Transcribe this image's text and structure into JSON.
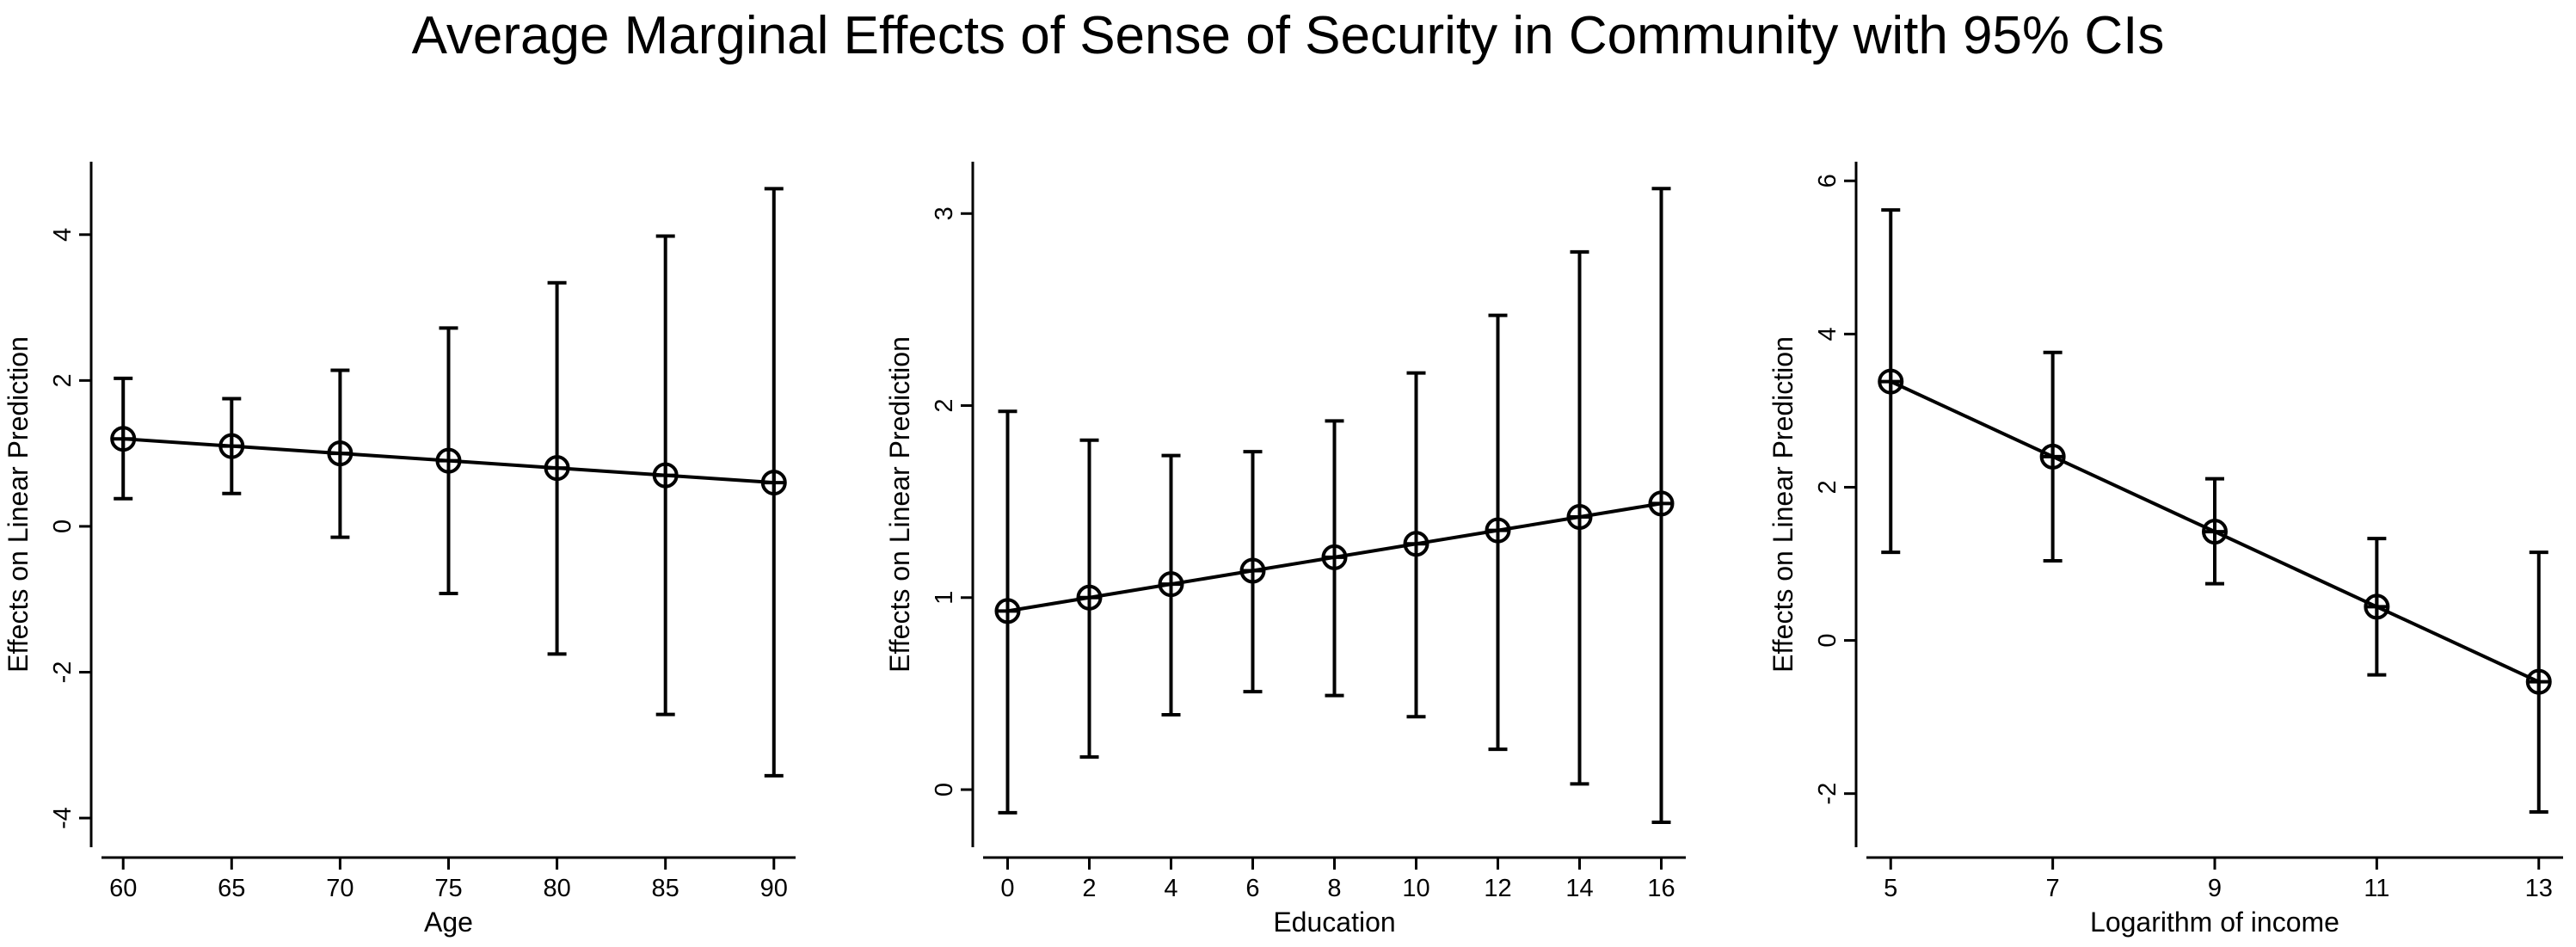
{
  "figure": {
    "title": "Average Marginal Effects of Sense of Security in Community with 95% CIs"
  },
  "chart_data": [
    {
      "type": "line",
      "error_bars": true,
      "marker": "circle",
      "xlabel": "Age",
      "ylabel": "Effects on Linear Prediction",
      "xlim": [
        59,
        91
      ],
      "ylim": [
        -4.4,
        5.0
      ],
      "xticks": [
        60,
        65,
        70,
        75,
        80,
        85,
        90
      ],
      "yticks": [
        -4,
        -2,
        0,
        2,
        4
      ],
      "grid": false,
      "series": [
        {
          "name": "Average marginal effect",
          "x": [
            60,
            65,
            70,
            75,
            80,
            85,
            90
          ],
          "y": [
            1.2,
            1.1,
            1.0,
            0.9,
            0.8,
            0.7,
            0.6
          ],
          "ci_low": [
            0.38,
            0.45,
            -0.15,
            -0.92,
            -1.75,
            -2.58,
            -3.42
          ],
          "ci_high": [
            2.03,
            1.75,
            2.14,
            2.72,
            3.34,
            3.98,
            4.63
          ]
        }
      ]
    },
    {
      "type": "line",
      "error_bars": true,
      "marker": "circle",
      "xlabel": "Education",
      "ylabel": "Effects on Linear Prediction",
      "xlim": [
        -0.6,
        16.6
      ],
      "ylim": [
        -0.3,
        3.27
      ],
      "xticks": [
        0,
        2,
        4,
        6,
        8,
        10,
        12,
        14,
        16
      ],
      "yticks": [
        0,
        1,
        2,
        3
      ],
      "grid": false,
      "series": [
        {
          "name": "Average marginal effect",
          "x": [
            0,
            2,
            4,
            6,
            8,
            10,
            12,
            14,
            16
          ],
          "y": [
            0.93,
            1.0,
            1.07,
            1.14,
            1.21,
            1.28,
            1.35,
            1.42,
            1.49
          ],
          "ci_low": [
            -0.12,
            0.17,
            0.39,
            0.51,
            0.49,
            0.38,
            0.21,
            0.03,
            -0.17
          ],
          "ci_high": [
            1.97,
            1.82,
            1.74,
            1.76,
            1.92,
            2.17,
            2.47,
            2.8,
            3.13
          ]
        }
      ]
    },
    {
      "type": "line",
      "error_bars": true,
      "marker": "circle",
      "xlabel": "Logarithm of income",
      "ylabel": "Effects on Linear Prediction",
      "xlim": [
        4.7,
        13.3
      ],
      "ylim": [
        -2.7,
        6.25
      ],
      "xticks": [
        5,
        7,
        9,
        11,
        13
      ],
      "yticks": [
        -2,
        0,
        2,
        4,
        6
      ],
      "grid": false,
      "series": [
        {
          "name": "Average marginal effect",
          "x": [
            5,
            7,
            9,
            11,
            13
          ],
          "y": [
            3.38,
            2.4,
            1.42,
            0.44,
            -0.54
          ],
          "ci_low": [
            1.15,
            1.04,
            0.74,
            -0.45,
            -2.24
          ],
          "ci_high": [
            5.62,
            3.76,
            2.11,
            1.33,
            1.15
          ]
        }
      ]
    }
  ]
}
